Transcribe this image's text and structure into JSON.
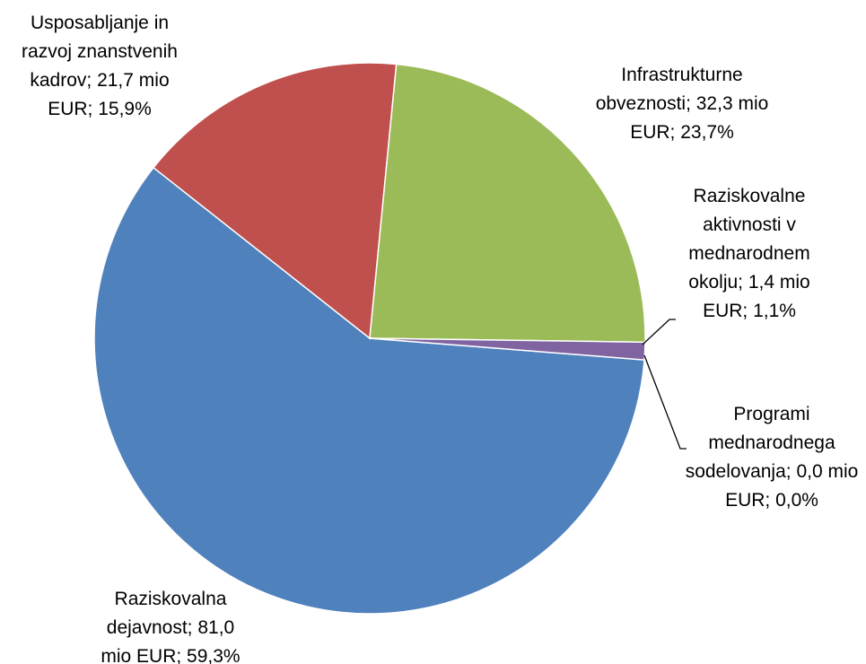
{
  "chart_data": {
    "type": "pie",
    "values": [
      81.0,
      21.7,
      32.3,
      1.4,
      0.0
    ],
    "value_labels": [
      "Raziskovalna dejavnost; 81,0 mio EUR; 59,3%",
      "Usposabljanje in razvoj znanstvenih kadrov; 21,7 mio EUR; 15,9%",
      "Infrastrukturne obveznosti; 32,3 mio EUR; 23,7%",
      "Raziskovalne aktivnosti v mednarodnem okolju; 1,4 mio EUR; 1,1%",
      "Programi mednarodnega sodelovanja; 0,0 mio EUR; 0,0%"
    ],
    "colors": [
      "#4f81bd",
      "#c0504d",
      "#9bbb59",
      "#8064a2",
      "#4bacc6"
    ]
  }
}
